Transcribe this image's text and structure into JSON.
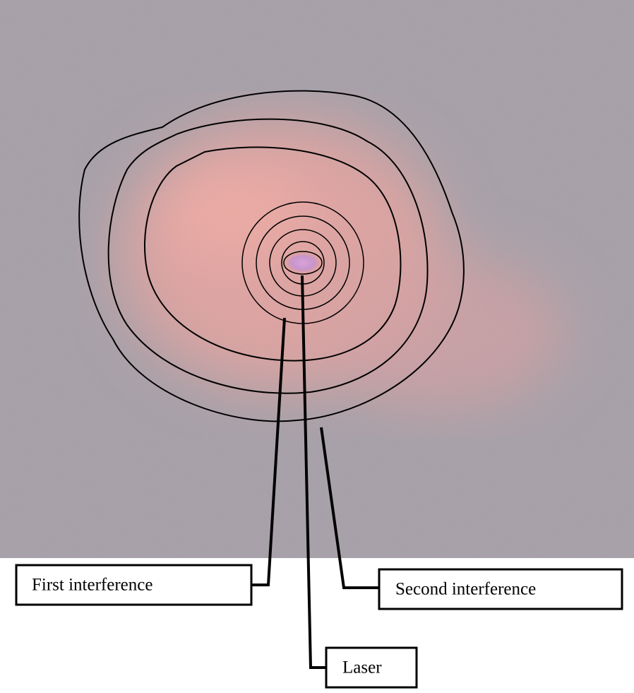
{
  "labels": [
    {
      "text": "First interference"
    },
    {
      "text": "Second interference"
    },
    {
      "text": "Laser"
    }
  ]
}
